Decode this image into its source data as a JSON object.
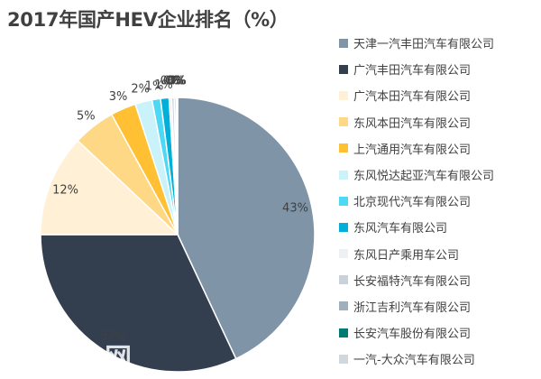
{
  "chart_data": {
    "type": "pie",
    "title": "2017年国产HEV企业排名（%）",
    "legend_position": "right",
    "start_angle_deg": 0,
    "slices": [
      {
        "name": "天津一汽丰田汽车有限公司",
        "value": 43,
        "label": "43%",
        "color": "#7F95A7"
      },
      {
        "name": "广汽丰田汽车有限公司",
        "value": 32,
        "label": "32%",
        "color": "#333F4F"
      },
      {
        "name": "广汽本田汽车有限公司",
        "value": 12,
        "label": "12%",
        "color": "#FFF0D6"
      },
      {
        "name": "东风本田汽车有限公司",
        "value": 5,
        "label": "5%",
        "color": "#FFD885"
      },
      {
        "name": "上汽通用汽车有限公司",
        "value": 3,
        "label": "3%",
        "color": "#FFC033"
      },
      {
        "name": "东风悦达起亚汽车有限公司",
        "value": 2,
        "label": "2%",
        "color": "#C9F2FA"
      },
      {
        "name": "北京现代汽车有限公司",
        "value": 1,
        "label": "1%",
        "color": "#4DD9F5"
      },
      {
        "name": "东风汽车有限公司",
        "value": 1,
        "label": "1%",
        "color": "#00B0D9"
      },
      {
        "name": "东风日产乘用车公司",
        "value": 0.3,
        "label": "0%",
        "color": "#EEF1F4"
      },
      {
        "name": "长安福特汽车有限公司",
        "value": 0.3,
        "label": "0%",
        "color": "#C9D2DA"
      },
      {
        "name": "浙江吉利汽车有限公司",
        "value": 0.2,
        "label": "0%",
        "color": "#9FAFBD"
      },
      {
        "name": "长安汽车股份有限公司",
        "value": 0.1,
        "label": "0%",
        "color": "#007A73"
      },
      {
        "name": "一汽-大众汽车有限公司",
        "value": 0.1,
        "label": "0%",
        "color": "#D0D8DF"
      }
    ]
  },
  "watermark": "电网"
}
